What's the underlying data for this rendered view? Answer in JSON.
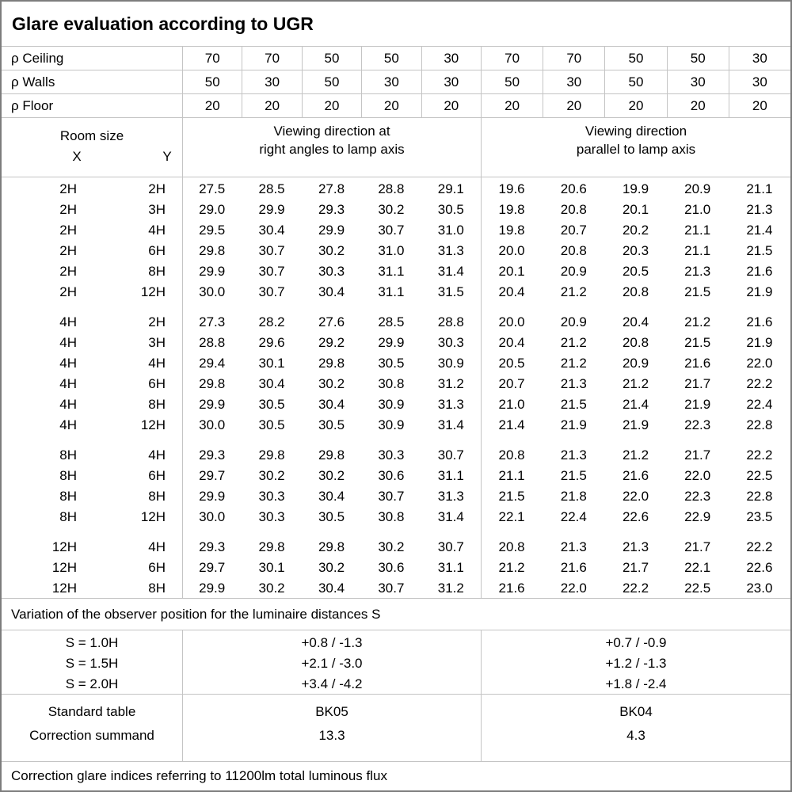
{
  "title": "Glare evaluation according to UGR",
  "rho": {
    "rows": [
      {
        "label": "ρ Ceiling",
        "right_angles": [
          "70",
          "70",
          "50",
          "50",
          "30"
        ],
        "parallel": [
          "70",
          "70",
          "50",
          "50",
          "30"
        ]
      },
      {
        "label": "ρ Walls",
        "right_angles": [
          "50",
          "30",
          "50",
          "30",
          "30"
        ],
        "parallel": [
          "50",
          "30",
          "50",
          "30",
          "30"
        ]
      },
      {
        "label": "ρ Floor",
        "right_angles": [
          "20",
          "20",
          "20",
          "20",
          "20"
        ],
        "parallel": [
          "20",
          "20",
          "20",
          "20",
          "20"
        ]
      }
    ]
  },
  "columns": {
    "room_size": "Room size",
    "x": "X",
    "y": "Y",
    "right_angles_line1": "Viewing direction at",
    "right_angles_line2": "right angles to lamp axis",
    "parallel_line1": "Viewing direction",
    "parallel_line2": "parallel to lamp axis"
  },
  "body": {
    "groups": [
      {
        "rows": [
          {
            "x": "2H",
            "y": "2H",
            "right_angles": [
              "27.5",
              "28.5",
              "27.8",
              "28.8",
              "29.1"
            ],
            "parallel": [
              "19.6",
              "20.6",
              "19.9",
              "20.9",
              "21.1"
            ]
          },
          {
            "x": "2H",
            "y": "3H",
            "right_angles": [
              "29.0",
              "29.9",
              "29.3",
              "30.2",
              "30.5"
            ],
            "parallel": [
              "19.8",
              "20.8",
              "20.1",
              "21.0",
              "21.3"
            ]
          },
          {
            "x": "2H",
            "y": "4H",
            "right_angles": [
              "29.5",
              "30.4",
              "29.9",
              "30.7",
              "31.0"
            ],
            "parallel": [
              "19.8",
              "20.7",
              "20.2",
              "21.1",
              "21.4"
            ]
          },
          {
            "x": "2H",
            "y": "6H",
            "right_angles": [
              "29.8",
              "30.7",
              "30.2",
              "31.0",
              "31.3"
            ],
            "parallel": [
              "20.0",
              "20.8",
              "20.3",
              "21.1",
              "21.5"
            ]
          },
          {
            "x": "2H",
            "y": "8H",
            "right_angles": [
              "29.9",
              "30.7",
              "30.3",
              "31.1",
              "31.4"
            ],
            "parallel": [
              "20.1",
              "20.9",
              "20.5",
              "21.3",
              "21.6"
            ]
          },
          {
            "x": "2H",
            "y": "12H",
            "right_angles": [
              "30.0",
              "30.7",
              "30.4",
              "31.1",
              "31.5"
            ],
            "parallel": [
              "20.4",
              "21.2",
              "20.8",
              "21.5",
              "21.9"
            ]
          }
        ]
      },
      {
        "rows": [
          {
            "x": "4H",
            "y": "2H",
            "right_angles": [
              "27.3",
              "28.2",
              "27.6",
              "28.5",
              "28.8"
            ],
            "parallel": [
              "20.0",
              "20.9",
              "20.4",
              "21.2",
              "21.6"
            ]
          },
          {
            "x": "4H",
            "y": "3H",
            "right_angles": [
              "28.8",
              "29.6",
              "29.2",
              "29.9",
              "30.3"
            ],
            "parallel": [
              "20.4",
              "21.2",
              "20.8",
              "21.5",
              "21.9"
            ]
          },
          {
            "x": "4H",
            "y": "4H",
            "right_angles": [
              "29.4",
              "30.1",
              "29.8",
              "30.5",
              "30.9"
            ],
            "parallel": [
              "20.5",
              "21.2",
              "20.9",
              "21.6",
              "22.0"
            ]
          },
          {
            "x": "4H",
            "y": "6H",
            "right_angles": [
              "29.8",
              "30.4",
              "30.2",
              "30.8",
              "31.2"
            ],
            "parallel": [
              "20.7",
              "21.3",
              "21.2",
              "21.7",
              "22.2"
            ]
          },
          {
            "x": "4H",
            "y": "8H",
            "right_angles": [
              "29.9",
              "30.5",
              "30.4",
              "30.9",
              "31.3"
            ],
            "parallel": [
              "21.0",
              "21.5",
              "21.4",
              "21.9",
              "22.4"
            ]
          },
          {
            "x": "4H",
            "y": "12H",
            "right_angles": [
              "30.0",
              "30.5",
              "30.5",
              "30.9",
              "31.4"
            ],
            "parallel": [
              "21.4",
              "21.9",
              "21.9",
              "22.3",
              "22.8"
            ]
          }
        ]
      },
      {
        "rows": [
          {
            "x": "8H",
            "y": "4H",
            "right_angles": [
              "29.3",
              "29.8",
              "29.8",
              "30.3",
              "30.7"
            ],
            "parallel": [
              "20.8",
              "21.3",
              "21.2",
              "21.7",
              "22.2"
            ]
          },
          {
            "x": "8H",
            "y": "6H",
            "right_angles": [
              "29.7",
              "30.2",
              "30.2",
              "30.6",
              "31.1"
            ],
            "parallel": [
              "21.1",
              "21.5",
              "21.6",
              "22.0",
              "22.5"
            ]
          },
          {
            "x": "8H",
            "y": "8H",
            "right_angles": [
              "29.9",
              "30.3",
              "30.4",
              "30.7",
              "31.3"
            ],
            "parallel": [
              "21.5",
              "21.8",
              "22.0",
              "22.3",
              "22.8"
            ]
          },
          {
            "x": "8H",
            "y": "12H",
            "right_angles": [
              "30.0",
              "30.3",
              "30.5",
              "30.8",
              "31.4"
            ],
            "parallel": [
              "22.1",
              "22.4",
              "22.6",
              "22.9",
              "23.5"
            ]
          }
        ]
      },
      {
        "rows": [
          {
            "x": "12H",
            "y": "4H",
            "right_angles": [
              "29.3",
              "29.8",
              "29.8",
              "30.2",
              "30.7"
            ],
            "parallel": [
              "20.8",
              "21.3",
              "21.3",
              "21.7",
              "22.2"
            ]
          },
          {
            "x": "12H",
            "y": "6H",
            "right_angles": [
              "29.7",
              "30.1",
              "30.2",
              "30.6",
              "31.1"
            ],
            "parallel": [
              "21.2",
              "21.6",
              "21.7",
              "22.1",
              "22.6"
            ]
          },
          {
            "x": "12H",
            "y": "8H",
            "right_angles": [
              "29.9",
              "30.2",
              "30.4",
              "30.7",
              "31.2"
            ],
            "parallel": [
              "21.6",
              "22.0",
              "22.2",
              "22.5",
              "23.0"
            ]
          }
        ]
      }
    ]
  },
  "variation": {
    "note": "Variation of the observer position for the luminaire distances S",
    "rows": [
      {
        "s": "S = 1.0H",
        "right_angles": "+0.8 / -1.3",
        "parallel": "+0.7 / -0.9"
      },
      {
        "s": "S = 1.5H",
        "right_angles": "+2.1 / -3.0",
        "parallel": "+1.2 / -1.3"
      },
      {
        "s": "S = 2.0H",
        "right_angles": "+3.4 / -4.2",
        "parallel": "+1.8 / -2.4"
      }
    ]
  },
  "summary": {
    "rows": [
      {
        "label": "Standard table",
        "right_angles": "BK05",
        "parallel": "BK04"
      },
      {
        "label": "Correction summand",
        "right_angles": "13.3",
        "parallel": "4.3"
      }
    ]
  },
  "footer_note": "Correction glare indices referring to 11200lm total luminous flux"
}
